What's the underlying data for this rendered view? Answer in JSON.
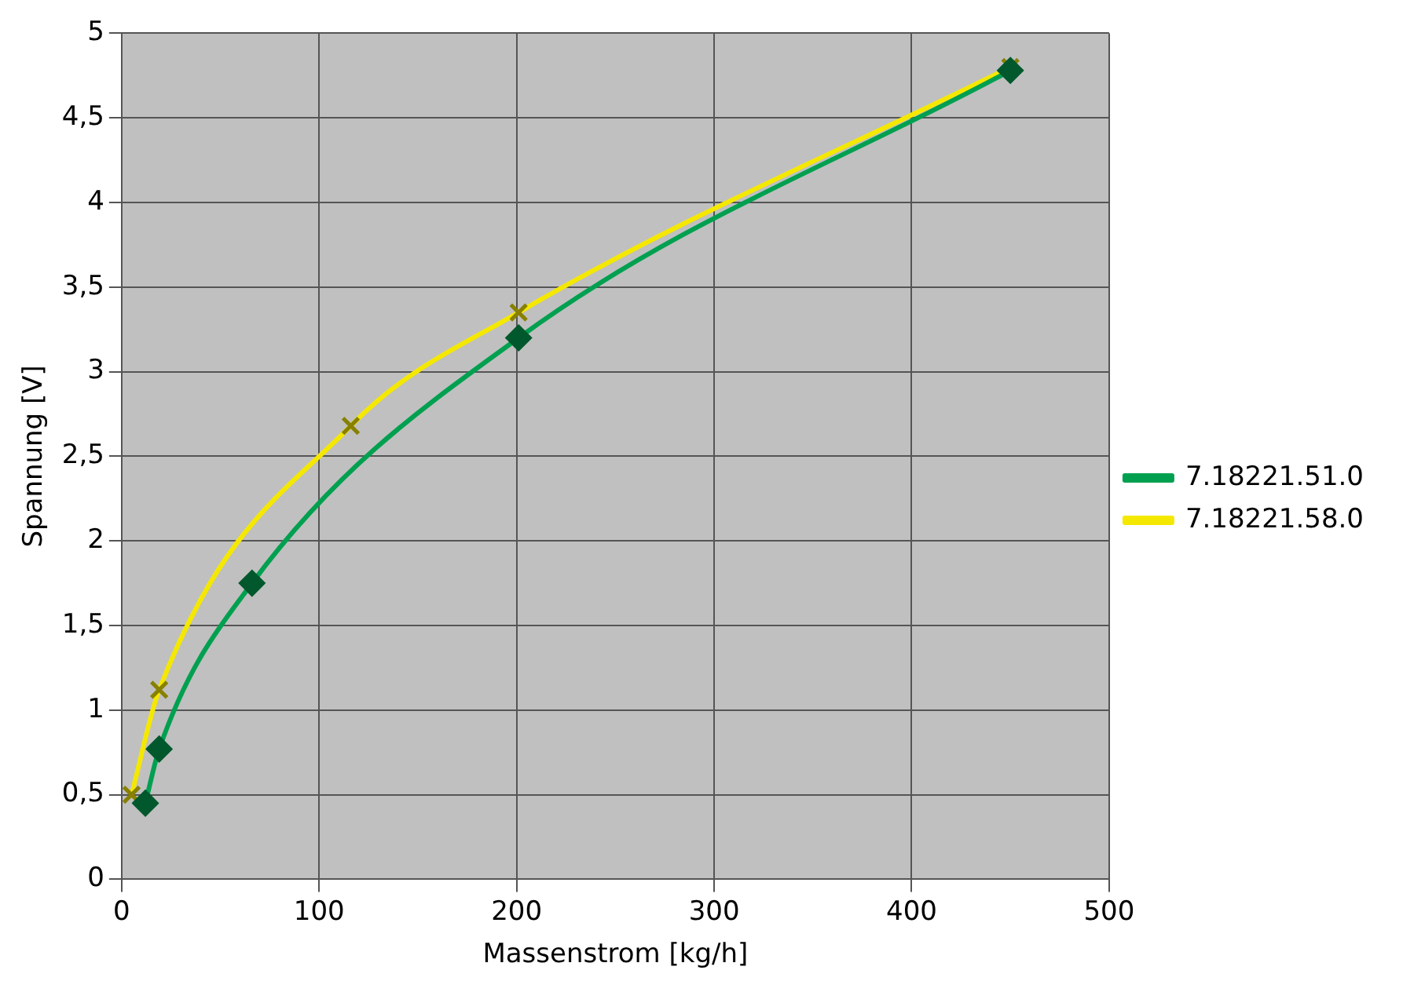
{
  "chart_data": {
    "type": "line",
    "xlabel": "Massenstrom [kg/h]",
    "ylabel": "Spannung [V]",
    "xlim": [
      0,
      500
    ],
    "xticks": [
      0,
      100,
      200,
      300,
      400,
      500
    ],
    "ylim": [
      0,
      5
    ],
    "yticks": [
      0,
      {
        "value": 0.5,
        "label": "0,5"
      },
      1,
      {
        "value": 1.5,
        "label": "1,5"
      },
      2,
      {
        "value": 2.5,
        "label": "2,5"
      },
      3,
      {
        "value": 3.5,
        "label": "3,5"
      },
      4,
      {
        "value": 4.5,
        "label": "4,5"
      },
      5
    ],
    "grid": true,
    "legend": "right",
    "series": [
      {
        "name": "7.18221.51.0",
        "color": "#00a050",
        "marker": "diamond",
        "x": [
          12,
          19,
          66,
          201,
          450
        ],
        "values": [
          0.45,
          0.77,
          1.75,
          3.2,
          4.78
        ]
      },
      {
        "name": "7.18221.58.0",
        "color": "#f5e800",
        "marker": "cross",
        "x": [
          5,
          19,
          116,
          201,
          450
        ],
        "values": [
          0.5,
          1.12,
          2.68,
          3.35,
          4.8
        ]
      }
    ]
  }
}
